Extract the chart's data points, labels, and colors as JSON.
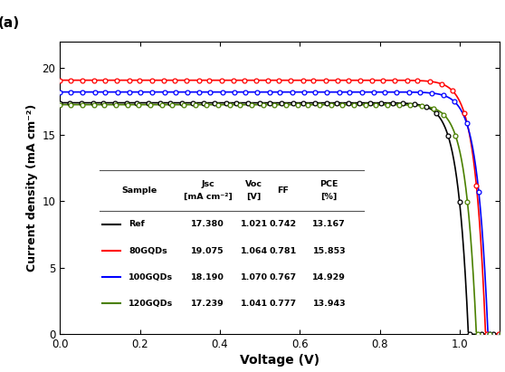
{
  "title": "(a)",
  "xlabel": "Voltage (V)",
  "ylabel": "Current density (mA cm⁻²)",
  "xlim": [
    0.0,
    1.1
  ],
  "ylim": [
    0,
    22
  ],
  "yticks": [
    0,
    5,
    10,
    15,
    20
  ],
  "xticks": [
    0.0,
    0.2,
    0.4,
    0.6,
    0.8,
    1.0
  ],
  "samples": {
    "Ref": {
      "Jsc": 17.38,
      "Voc": 1.021,
      "FF": 0.742,
      "PCE": 13.167,
      "color": "#000000"
    },
    "80GQDs": {
      "Jsc": 19.075,
      "Voc": 1.064,
      "FF": 0.781,
      "PCE": 15.853,
      "color": "#ff0000"
    },
    "100GQDs": {
      "Jsc": 18.19,
      "Voc": 1.07,
      "FF": 0.767,
      "PCE": 14.929,
      "color": "#0000ff"
    },
    "120GQDs": {
      "Jsc": 17.239,
      "Voc": 1.041,
      "FF": 0.777,
      "PCE": 13.943,
      "color": "#4a8000"
    }
  },
  "table_rows": [
    [
      "Ref",
      "17.380",
      "1.021",
      "0.742",
      "13.167"
    ],
    [
      "80GQDs",
      "19.075",
      "1.064",
      "0.781",
      "15.853"
    ],
    [
      "100GQDs",
      "18.190",
      "1.070",
      "0.767",
      "14.929"
    ],
    [
      "120GQDs",
      "17.239",
      "1.041",
      "0.777",
      "13.943"
    ]
  ],
  "table_row_colors": [
    "#000000",
    "#ff0000",
    "#0000ff",
    "#4a8000"
  ],
  "n_markers": 40,
  "marker_size": 3.5,
  "linewidth": 1.2
}
